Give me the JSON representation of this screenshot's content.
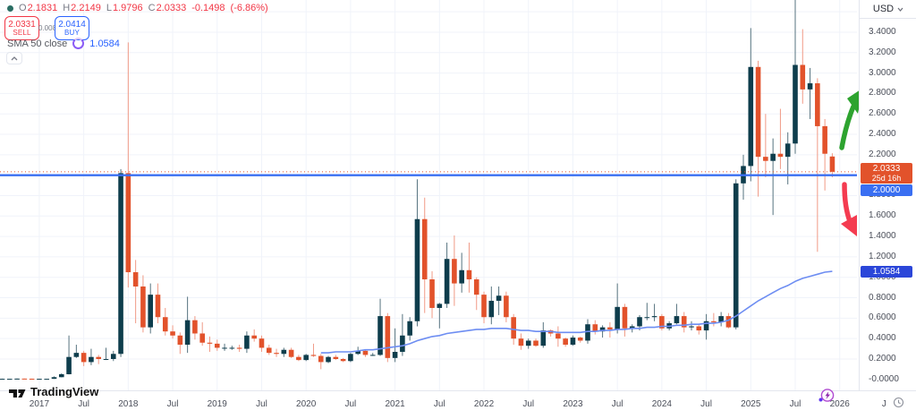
{
  "header": {
    "ohlc": {
      "open_label": "O",
      "open": "2.1831",
      "high_label": "H",
      "high": "2.2149",
      "low_label": "L",
      "low": "1.9796",
      "close_label": "C",
      "close": "2.0333",
      "change": "-0.1498",
      "change_pct": "(-6.86%)"
    },
    "sell": {
      "price": "2.0331",
      "label": "SELL"
    },
    "spread": "0.0083",
    "buy": {
      "price": "2.0414",
      "label": "BUY"
    },
    "indicator": {
      "name": "SMA 50 close",
      "value": "1.0584"
    }
  },
  "price_axis": {
    "currency": "USD",
    "ticks": [
      {
        "label": "3.4000",
        "value": 3.4
      },
      {
        "label": "3.2000",
        "value": 3.2
      },
      {
        "label": "3.0000",
        "value": 3.0
      },
      {
        "label": "2.8000",
        "value": 2.8
      },
      {
        "label": "2.6000",
        "value": 2.6
      },
      {
        "label": "2.4000",
        "value": 2.4
      },
      {
        "label": "2.2000",
        "value": 2.2
      },
      {
        "label": "1.8000",
        "value": 1.8
      },
      {
        "label": "1.6000",
        "value": 1.6
      },
      {
        "label": "1.4000",
        "value": 1.4
      },
      {
        "label": "1.2000",
        "value": 1.2
      },
      {
        "label": "1.0000",
        "value": 1.0
      },
      {
        "label": "0.8000",
        "value": 0.8
      },
      {
        "label": "0.6000",
        "value": 0.6
      },
      {
        "label": "0.4000",
        "value": 0.4
      },
      {
        "label": "0.2000",
        "value": 0.2
      },
      {
        "label": "-0.0000",
        "value": 0.0
      }
    ],
    "last_price_tag": {
      "price": "2.0333",
      "countdown": "25d 16h"
    },
    "hline_tag": "2.0000",
    "sma_tag": "1.0584"
  },
  "time_axis": {
    "labels": [
      {
        "text": "2017",
        "t": "2017-01"
      },
      {
        "text": "Jul",
        "t": "2017-07"
      },
      {
        "text": "2018",
        "t": "2018-01"
      },
      {
        "text": "Jul",
        "t": "2018-07"
      },
      {
        "text": "2019",
        "t": "2019-01"
      },
      {
        "text": "Jul",
        "t": "2019-07"
      },
      {
        "text": "2020",
        "t": "2020-01"
      },
      {
        "text": "Jul",
        "t": "2020-07"
      },
      {
        "text": "2021",
        "t": "2021-01"
      },
      {
        "text": "Jul",
        "t": "2021-07"
      },
      {
        "text": "2022",
        "t": "2022-01"
      },
      {
        "text": "Jul",
        "t": "2022-07"
      },
      {
        "text": "2023",
        "t": "2023-01"
      },
      {
        "text": "Jul",
        "t": "2023-07"
      },
      {
        "text": "2024",
        "t": "2024-01"
      },
      {
        "text": "Jul",
        "t": "2024-07"
      },
      {
        "text": "2025",
        "t": "2025-01"
      },
      {
        "text": "Jul",
        "t": "2025-07"
      },
      {
        "text": "2026",
        "t": "2026-01"
      },
      {
        "text": "J",
        "t": "2026-07"
      }
    ]
  },
  "footer": {
    "brand": "TradingView"
  },
  "colors": {
    "up": "#0e3d4c",
    "down": "#e2522b",
    "up_wick": "#56737f",
    "down_wick": "#f09a86",
    "sma": "#6d8df2",
    "hline": "#3a6ff2",
    "last_price": "#e2522b",
    "grid": "#f0f3fa",
    "axis_text": "#4a4e59",
    "accent_red": "#f23645",
    "accent_blue": "#2962ff",
    "text_muted": "#787b86",
    "border": "#e3e6ee",
    "last_tag_bg": "#e2522b",
    "hline_tag_bg": "#3a6ff2",
    "sma_tag_bg": "#2b46d9",
    "arrow_up": "#2da32f",
    "arrow_down": "#f43b50",
    "spinner": "#8b5cf6",
    "status_dot": "#2a6e63"
  },
  "chart_data": {
    "type": "candlestick",
    "unit": "USD",
    "ylim": [
      0,
      3.72
    ],
    "y_tick_step": 0.2,
    "x_start": "2016-08",
    "x_end": "2026-07",
    "grid": true,
    "hline": 2.0,
    "last_price": 2.0333,
    "candles": [
      [
        "2016-08",
        0.006,
        0.008,
        0.005,
        0.006
      ],
      [
        "2016-09",
        0.006,
        0.007,
        0.005,
        0.006
      ],
      [
        "2016-10",
        0.006,
        0.009,
        0.006,
        0.008
      ],
      [
        "2016-11",
        0.008,
        0.009,
        0.006,
        0.007
      ],
      [
        "2016-12",
        0.007,
        0.008,
        0.006,
        0.006
      ],
      [
        "2017-01",
        0.006,
        0.007,
        0.005,
        0.006
      ],
      [
        "2017-02",
        0.006,
        0.007,
        0.005,
        0.006
      ],
      [
        "2017-03",
        0.006,
        0.03,
        0.005,
        0.022
      ],
      [
        "2017-04",
        0.022,
        0.06,
        0.02,
        0.051
      ],
      [
        "2017-05",
        0.051,
        0.43,
        0.049,
        0.22
      ],
      [
        "2017-06",
        0.22,
        0.34,
        0.21,
        0.26
      ],
      [
        "2017-07",
        0.26,
        0.28,
        0.13,
        0.17
      ],
      [
        "2017-08",
        0.17,
        0.3,
        0.14,
        0.22
      ],
      [
        "2017-09",
        0.22,
        0.24,
        0.15,
        0.2
      ],
      [
        "2017-10",
        0.2,
        0.31,
        0.19,
        0.2
      ],
      [
        "2017-11",
        0.2,
        0.28,
        0.18,
        0.25
      ],
      [
        "2017-12",
        0.25,
        2.06,
        0.22,
        2.02
      ],
      [
        "2018-01",
        2.02,
        3.3,
        0.9,
        1.05
      ],
      [
        "2018-02",
        1.05,
        1.17,
        0.55,
        0.91
      ],
      [
        "2018-03",
        0.91,
        1.02,
        0.46,
        0.51
      ],
      [
        "2018-04",
        0.51,
        0.94,
        0.45,
        0.83
      ],
      [
        "2018-05",
        0.83,
        0.94,
        0.55,
        0.61
      ],
      [
        "2018-06",
        0.61,
        0.7,
        0.43,
        0.47
      ],
      [
        "2018-07",
        0.47,
        0.53,
        0.4,
        0.43
      ],
      [
        "2018-08",
        0.43,
        0.46,
        0.25,
        0.34
      ],
      [
        "2018-09",
        0.34,
        0.81,
        0.26,
        0.58
      ],
      [
        "2018-10",
        0.58,
        0.62,
        0.39,
        0.45
      ],
      [
        "2018-11",
        0.45,
        0.56,
        0.33,
        0.36
      ],
      [
        "2018-12",
        0.36,
        0.42,
        0.27,
        0.35
      ],
      [
        "2019-01",
        0.35,
        0.39,
        0.28,
        0.31
      ],
      [
        "2019-02",
        0.31,
        0.35,
        0.28,
        0.31
      ],
      [
        "2019-03",
        0.31,
        0.33,
        0.29,
        0.31
      ],
      [
        "2019-04",
        0.31,
        0.34,
        0.27,
        0.3
      ],
      [
        "2019-05",
        0.3,
        0.47,
        0.26,
        0.43
      ],
      [
        "2019-06",
        0.43,
        0.49,
        0.37,
        0.4
      ],
      [
        "2019-07",
        0.4,
        0.43,
        0.27,
        0.31
      ],
      [
        "2019-08",
        0.31,
        0.34,
        0.24,
        0.26
      ],
      [
        "2019-09",
        0.26,
        0.3,
        0.22,
        0.25
      ],
      [
        "2019-10",
        0.25,
        0.31,
        0.22,
        0.29
      ],
      [
        "2019-11",
        0.29,
        0.31,
        0.21,
        0.22
      ],
      [
        "2019-12",
        0.22,
        0.24,
        0.18,
        0.19
      ],
      [
        "2020-01",
        0.19,
        0.25,
        0.18,
        0.24
      ],
      [
        "2020-02",
        0.24,
        0.35,
        0.22,
        0.23
      ],
      [
        "2020-03",
        0.23,
        0.25,
        0.1,
        0.17
      ],
      [
        "2020-04",
        0.17,
        0.23,
        0.16,
        0.22
      ],
      [
        "2020-05",
        0.22,
        0.24,
        0.19,
        0.2
      ],
      [
        "2020-06",
        0.2,
        0.21,
        0.17,
        0.18
      ],
      [
        "2020-07",
        0.18,
        0.26,
        0.17,
        0.25
      ],
      [
        "2020-08",
        0.25,
        0.32,
        0.24,
        0.28
      ],
      [
        "2020-09",
        0.28,
        0.29,
        0.22,
        0.24
      ],
      [
        "2020-10",
        0.24,
        0.26,
        0.23,
        0.24
      ],
      [
        "2020-11",
        0.24,
        0.79,
        0.23,
        0.62
      ],
      [
        "2020-12",
        0.62,
        0.65,
        0.17,
        0.21
      ],
      [
        "2021-01",
        0.21,
        0.5,
        0.17,
        0.27
      ],
      [
        "2021-02",
        0.27,
        0.64,
        0.23,
        0.43
      ],
      [
        "2021-03",
        0.43,
        0.61,
        0.38,
        0.57
      ],
      [
        "2021-04",
        0.57,
        1.96,
        0.52,
        1.57
      ],
      [
        "2021-05",
        1.57,
        1.78,
        0.65,
        0.98
      ],
      [
        "2021-06",
        0.98,
        1.06,
        0.6,
        0.7
      ],
      [
        "2021-07",
        0.7,
        0.75,
        0.5,
        0.74
      ],
      [
        "2021-08",
        0.74,
        1.34,
        0.7,
        1.18
      ],
      [
        "2021-09",
        1.18,
        1.41,
        0.72,
        0.94
      ],
      [
        "2021-10",
        0.94,
        1.24,
        0.85,
        1.07
      ],
      [
        "2021-11",
        1.07,
        1.34,
        0.85,
        0.98
      ],
      [
        "2021-12",
        0.98,
        1.0,
        0.68,
        0.83
      ],
      [
        "2022-01",
        0.83,
        0.86,
        0.55,
        0.61
      ],
      [
        "2022-02",
        0.61,
        0.91,
        0.54,
        0.77
      ],
      [
        "2022-03",
        0.77,
        0.91,
        0.63,
        0.82
      ],
      [
        "2022-04",
        0.82,
        0.86,
        0.56,
        0.61
      ],
      [
        "2022-05",
        0.61,
        0.64,
        0.34,
        0.4
      ],
      [
        "2022-06",
        0.4,
        0.45,
        0.29,
        0.33
      ],
      [
        "2022-07",
        0.33,
        0.4,
        0.3,
        0.38
      ],
      [
        "2022-08",
        0.38,
        0.4,
        0.32,
        0.33
      ],
      [
        "2022-09",
        0.33,
        0.56,
        0.31,
        0.48
      ],
      [
        "2022-10",
        0.48,
        0.49,
        0.42,
        0.45
      ],
      [
        "2022-11",
        0.45,
        0.52,
        0.32,
        0.4
      ],
      [
        "2022-12",
        0.4,
        0.41,
        0.32,
        0.34
      ],
      [
        "2023-01",
        0.34,
        0.43,
        0.33,
        0.41
      ],
      [
        "2023-02",
        0.41,
        0.42,
        0.36,
        0.38
      ],
      [
        "2023-03",
        0.38,
        0.59,
        0.35,
        0.54
      ],
      [
        "2023-04",
        0.54,
        0.58,
        0.44,
        0.47
      ],
      [
        "2023-05",
        0.47,
        0.53,
        0.41,
        0.51
      ],
      [
        "2023-06",
        0.51,
        0.56,
        0.41,
        0.49
      ],
      [
        "2023-07",
        0.49,
        0.94,
        0.45,
        0.71
      ],
      [
        "2023-08",
        0.71,
        0.74,
        0.42,
        0.5
      ],
      [
        "2023-09",
        0.5,
        0.54,
        0.46,
        0.52
      ],
      [
        "2023-10",
        0.52,
        0.63,
        0.48,
        0.61
      ],
      [
        "2023-11",
        0.61,
        0.75,
        0.58,
        0.61
      ],
      [
        "2023-12",
        0.61,
        0.74,
        0.57,
        0.62
      ],
      [
        "2024-01",
        0.62,
        0.64,
        0.48,
        0.5
      ],
      [
        "2024-02",
        0.5,
        0.57,
        0.48,
        0.55
      ],
      [
        "2024-03",
        0.55,
        0.74,
        0.54,
        0.62
      ],
      [
        "2024-04",
        0.62,
        0.66,
        0.46,
        0.51
      ],
      [
        "2024-05",
        0.51,
        0.57,
        0.48,
        0.52
      ],
      [
        "2024-06",
        0.52,
        0.54,
        0.44,
        0.48
      ],
      [
        "2024-07",
        0.48,
        0.64,
        0.39,
        0.57
      ],
      [
        "2024-08",
        0.57,
        0.65,
        0.52,
        0.56
      ],
      [
        "2024-09",
        0.56,
        0.66,
        0.52,
        0.62
      ],
      [
        "2024-10",
        0.62,
        0.65,
        0.5,
        0.51
      ],
      [
        "2024-11",
        0.51,
        1.96,
        0.49,
        1.92
      ],
      [
        "2024-12",
        1.92,
        2.2,
        1.76,
        2.09
      ],
      [
        "2025-01",
        2.09,
        3.44,
        1.94,
        3.06
      ],
      [
        "2025-02",
        3.06,
        3.12,
        1.79,
        2.18
      ],
      [
        "2025-03",
        2.18,
        2.6,
        1.98,
        2.14
      ],
      [
        "2025-04",
        2.14,
        2.36,
        1.61,
        2.21
      ],
      [
        "2025-05",
        2.21,
        2.65,
        2.06,
        2.18
      ],
      [
        "2025-06",
        2.18,
        2.42,
        1.91,
        2.31
      ],
      [
        "2025-07",
        2.31,
        3.72,
        2.21,
        3.08
      ],
      [
        "2025-08",
        3.08,
        3.43,
        2.7,
        2.84
      ],
      [
        "2025-09",
        2.84,
        3.05,
        2.55,
        2.9
      ],
      [
        "2025-10",
        2.9,
        2.95,
        1.25,
        2.48
      ],
      [
        "2025-11",
        2.48,
        2.55,
        1.85,
        2.21
      ],
      [
        "2025-12",
        2.1831,
        2.2149,
        1.9796,
        2.0333
      ]
    ],
    "sma50": {
      "name": "SMA 50 close",
      "values": [
        [
          "2020-03",
          0.26
        ],
        [
          "2020-04",
          0.26
        ],
        [
          "2020-05",
          0.27
        ],
        [
          "2020-06",
          0.27
        ],
        [
          "2020-07",
          0.27
        ],
        [
          "2020-08",
          0.28
        ],
        [
          "2020-09",
          0.29
        ],
        [
          "2020-10",
          0.29
        ],
        [
          "2020-11",
          0.3
        ],
        [
          "2020-12",
          0.31
        ],
        [
          "2021-01",
          0.32
        ],
        [
          "2021-02",
          0.33
        ],
        [
          "2021-03",
          0.35
        ],
        [
          "2021-04",
          0.38
        ],
        [
          "2021-05",
          0.4
        ],
        [
          "2021-06",
          0.42
        ],
        [
          "2021-07",
          0.43
        ],
        [
          "2021-08",
          0.45
        ],
        [
          "2021-09",
          0.46
        ],
        [
          "2021-10",
          0.47
        ],
        [
          "2021-11",
          0.48
        ],
        [
          "2021-12",
          0.49
        ],
        [
          "2022-01",
          0.49
        ],
        [
          "2022-02",
          0.5
        ],
        [
          "2022-03",
          0.5
        ],
        [
          "2022-04",
          0.5
        ],
        [
          "2022-05",
          0.49
        ],
        [
          "2022-06",
          0.48
        ],
        [
          "2022-07",
          0.48
        ],
        [
          "2022-08",
          0.47
        ],
        [
          "2022-09",
          0.47
        ],
        [
          "2022-10",
          0.47
        ],
        [
          "2022-11",
          0.46
        ],
        [
          "2022-12",
          0.46
        ],
        [
          "2023-01",
          0.46
        ],
        [
          "2023-02",
          0.46
        ],
        [
          "2023-03",
          0.47
        ],
        [
          "2023-04",
          0.47
        ],
        [
          "2023-05",
          0.48
        ],
        [
          "2023-06",
          0.48
        ],
        [
          "2023-07",
          0.49
        ],
        [
          "2023-08",
          0.49
        ],
        [
          "2023-09",
          0.5
        ],
        [
          "2023-10",
          0.5
        ],
        [
          "2023-11",
          0.51
        ],
        [
          "2023-12",
          0.51
        ],
        [
          "2024-01",
          0.52
        ],
        [
          "2024-02",
          0.52
        ],
        [
          "2024-03",
          0.53
        ],
        [
          "2024-04",
          0.53
        ],
        [
          "2024-05",
          0.54
        ],
        [
          "2024-06",
          0.54
        ],
        [
          "2024-07",
          0.55
        ],
        [
          "2024-08",
          0.55
        ],
        [
          "2024-09",
          0.56
        ],
        [
          "2024-10",
          0.58
        ],
        [
          "2024-11",
          0.62
        ],
        [
          "2024-12",
          0.67
        ],
        [
          "2025-01",
          0.72
        ],
        [
          "2025-02",
          0.77
        ],
        [
          "2025-03",
          0.81
        ],
        [
          "2025-04",
          0.85
        ],
        [
          "2025-05",
          0.89
        ],
        [
          "2025-06",
          0.92
        ],
        [
          "2025-07",
          0.96
        ],
        [
          "2025-08",
          0.99
        ],
        [
          "2025-09",
          1.01
        ],
        [
          "2025-10",
          1.03
        ],
        [
          "2025-11",
          1.05
        ],
        [
          "2025-12",
          1.0584
        ]
      ]
    },
    "annotations": [
      {
        "type": "arrow",
        "direction": "up",
        "color_key": "arrow_up"
      },
      {
        "type": "arrow",
        "direction": "down",
        "color_key": "arrow_down"
      }
    ]
  }
}
